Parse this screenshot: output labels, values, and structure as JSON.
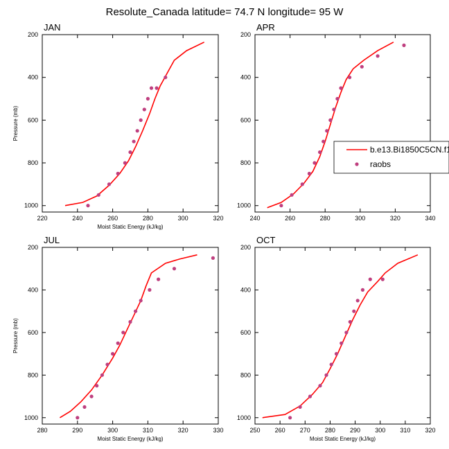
{
  "figure": {
    "title": "Resolute_Canada  latitude= 74.7 N longitude= 95 W"
  },
  "legend": {
    "model_label": "b.e13.Bi1850C5CN.f1",
    "obs_label": "raobs",
    "model_color": "#ff0000",
    "obs_color": "#bf3f7f"
  },
  "chart_data": [
    {
      "type": "line",
      "panel": "JAN",
      "title": "JAN",
      "xlabel": "Moist Static Energy (kJ/kg)",
      "ylabel": "Pressure (mb)",
      "xlim": [
        220,
        320
      ],
      "ylim": [
        1030,
        200
      ],
      "xticks": [
        220,
        240,
        260,
        280,
        300,
        320
      ],
      "yticks": [
        200,
        400,
        600,
        800,
        1000
      ],
      "series": [
        {
          "name": "b.e13.Bi1850C5CN.f1",
          "kind": "line",
          "x": [
            233,
            243,
            251,
            258,
            264,
            269,
            273,
            277,
            281,
            284,
            287,
            291,
            295,
            302,
            312
          ],
          "y": [
            1000,
            985,
            955,
            905,
            850,
            790,
            725,
            650,
            570,
            500,
            440,
            380,
            320,
            275,
            235
          ]
        },
        {
          "name": "raobs",
          "kind": "scatter",
          "x": [
            246,
            252,
            258,
            263,
            267,
            270,
            272,
            274,
            276,
            278,
            280,
            282,
            285,
            290
          ],
          "y": [
            1000,
            950,
            900,
            850,
            800,
            750,
            700,
            650,
            600,
            550,
            500,
            450,
            450,
            400
          ]
        }
      ]
    },
    {
      "type": "line",
      "panel": "APR",
      "title": "APR",
      "xlabel": "",
      "ylabel": "",
      "xlim": [
        240,
        340
      ],
      "ylim": [
        1030,
        200
      ],
      "xticks": [
        240,
        260,
        280,
        300,
        320,
        340
      ],
      "yticks": [
        200,
        400,
        600,
        800,
        1000
      ],
      "series": [
        {
          "name": "b.e13.Bi1850C5CN.f1",
          "kind": "line",
          "x": [
            247,
            255,
            262,
            268,
            273,
            277,
            280,
            283,
            286,
            289,
            292,
            296,
            302,
            310,
            319
          ],
          "y": [
            1010,
            985,
            945,
            895,
            840,
            770,
            700,
            620,
            540,
            470,
            410,
            360,
            320,
            275,
            235
          ]
        },
        {
          "name": "raobs",
          "kind": "scatter",
          "x": [
            255,
            261,
            267,
            271,
            274,
            277,
            279,
            281,
            283,
            285,
            287,
            289,
            294,
            301,
            310,
            325
          ],
          "y": [
            1000,
            950,
            900,
            850,
            800,
            750,
            700,
            650,
            600,
            550,
            500,
            450,
            400,
            350,
            300,
            250
          ]
        }
      ]
    },
    {
      "type": "line",
      "panel": "JUL",
      "title": "JUL",
      "xlabel": "Moist Static Energy (kJ/kg)",
      "ylabel": "Pressure (mb)",
      "xlim": [
        280,
        330
      ],
      "ylim": [
        1030,
        200
      ],
      "xticks": [
        280,
        290,
        300,
        310,
        320,
        330
      ],
      "yticks": [
        200,
        400,
        600,
        800,
        1000
      ],
      "series": [
        {
          "name": "b.e13.Bi1850C5CN.f1",
          "kind": "line",
          "x": [
            285,
            288,
            291,
            294,
            297,
            300,
            302,
            304,
            306,
            308,
            309.5,
            311,
            315,
            319,
            324
          ],
          "y": [
            1000,
            970,
            925,
            870,
            800,
            720,
            660,
            590,
            520,
            450,
            380,
            320,
            275,
            255,
            235
          ]
        },
        {
          "name": "raobs",
          "kind": "scatter",
          "x": [
            290,
            292,
            294,
            295.5,
            297,
            298.5,
            300,
            301.5,
            303,
            305,
            306.5,
            308,
            310.5,
            313,
            317.5,
            328.5
          ],
          "y": [
            1000,
            950,
            900,
            850,
            800,
            750,
            700,
            650,
            600,
            550,
            500,
            450,
            400,
            350,
            300,
            250
          ]
        }
      ]
    },
    {
      "type": "line",
      "panel": "OCT",
      "title": "OCT",
      "xlabel": "Moist Static Energy (kJ/kg)",
      "ylabel": "",
      "xlim": [
        250,
        320
      ],
      "ylim": [
        1030,
        200
      ],
      "xticks": [
        250,
        260,
        270,
        280,
        290,
        300,
        310,
        320
      ],
      "yticks": [
        200,
        400,
        600,
        800,
        1000
      ],
      "series": [
        {
          "name": "b.e13.Bi1850C5CN.f1",
          "kind": "line",
          "x": [
            253,
            262,
            268,
            273,
            277,
            280,
            283,
            286,
            289,
            292,
            295,
            299,
            302,
            307,
            315
          ],
          "y": [
            1000,
            985,
            945,
            890,
            835,
            770,
            700,
            620,
            540,
            470,
            410,
            360,
            320,
            275,
            235
          ]
        },
        {
          "name": "raobs",
          "kind": "scatter",
          "x": [
            264,
            268,
            272,
            276,
            278.5,
            280.5,
            282.5,
            284.5,
            286.5,
            288,
            289.5,
            291,
            293,
            296,
            301
          ],
          "y": [
            1000,
            950,
            900,
            850,
            800,
            750,
            700,
            650,
            600,
            550,
            500,
            450,
            400,
            350,
            350
          ]
        }
      ]
    }
  ]
}
